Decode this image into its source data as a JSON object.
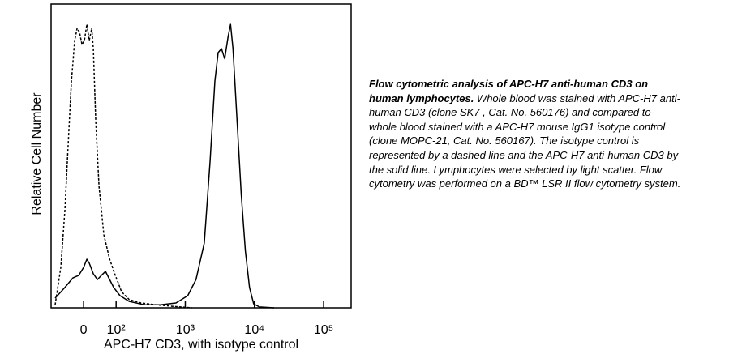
{
  "chart_data": {
    "type": "line",
    "x_label": "APC-H7 CD3, with isotype control",
    "y_label": "Relative Cell Number",
    "xscale": "biexponential",
    "xlim": [
      -100,
      250000
    ],
    "xticks": [
      0,
      {
        "value": 100,
        "label": "10²"
      },
      {
        "value": 1000,
        "label": "10³"
      },
      {
        "value": 10000,
        "label": "10⁴"
      },
      {
        "value": 100000,
        "label": "10⁵"
      }
    ],
    "ylim": [
      0,
      100
    ],
    "series": [
      {
        "color": "#000000",
        "dash": false,
        "x": [
          -87.5,
          -57.5,
          -32.5,
          -15,
          0,
          10,
          17.5,
          30,
          42.5,
          55,
          67.5,
          80,
          92.5,
          114,
          155,
          261,
          437,
          733,
          1086,
          1430,
          1880,
          2280,
          2680,
          2990,
          3340,
          3720,
          4160,
          4520,
          4900,
          5620,
          6450,
          7400,
          8490,
          9730,
          11800,
          19300
        ],
        "values": [
          3.2,
          6.7,
          9.9,
          10.7,
          13.3,
          16,
          14.7,
          11.2,
          9.3,
          10.7,
          12,
          9.3,
          6.7,
          4,
          2.1,
          1,
          1,
          1.6,
          4,
          9.3,
          21.3,
          48,
          74.7,
          84,
          85.3,
          82,
          89.3,
          93.3,
          85.3,
          61.3,
          37.3,
          18.7,
          6.7,
          1.3,
          0.3,
          0
        ]
      },
      {
        "color": "#000000",
        "dash": true,
        "x": [
          -87.5,
          -70,
          -57.5,
          -45,
          -37.5,
          -27.5,
          -20,
          -12.5,
          -5,
          2.5,
          10,
          17.5,
          25,
          30,
          37.5,
          47.5,
          62.5,
          80,
          97.5,
          120,
          155,
          229,
          384,
          644,
          1245
        ],
        "values": [
          1,
          13.3,
          32,
          58.7,
          74.7,
          88,
          92,
          90.7,
          86.7,
          88,
          93.3,
          88,
          92,
          85.3,
          61.3,
          40,
          24,
          16,
          10.7,
          5.3,
          2.7,
          1.6,
          1,
          0.5,
          0
        ]
      }
    ]
  },
  "caption": {
    "bold": "Flow cytometric analysis of APC-H7 anti-human CD3 on human lymphocytes.",
    "text": " Whole blood was stained with APC-H7 anti-human CD3 (clone SK7 , Cat. No. 560176) and compared to whole blood stained with a APC-H7 mouse IgG1 isotype control (clone MOPC-21, Cat. No. 560167). The isotype control is represented by a dashed line and the APC-H7 anti-human CD3 by the solid line.  Lymphocytes were selected by light scatter. Flow cytometry was performed on a BD™ LSR II flow cytometry system."
  }
}
